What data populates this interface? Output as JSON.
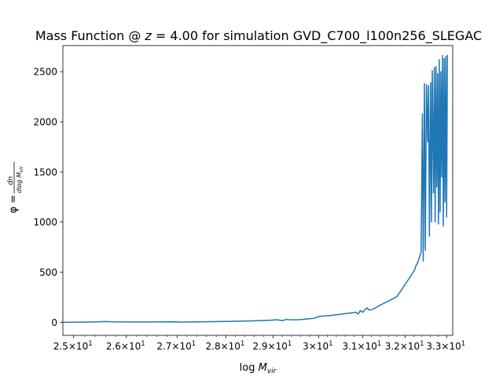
{
  "chart_data": {
    "type": "line",
    "title": "Mass Function @ z = 4.00 for simulation GVD_C700_l100n256_SLEGAC",
    "title_parts": {
      "prefix": "Mass Function @ ",
      "variable": "z",
      "equals_value": " = 4.00",
      "suffix": " for simulation GVD_C700_l100n256_SLEGAC"
    },
    "xlabel": "log M_vir",
    "xlabel_parts": {
      "base": "log ",
      "var": "M",
      "sub": "vir"
    },
    "ylabel": "φ = dn / dlog M_vir",
    "ylabel_parts": {
      "lhs": "φ = ",
      "num": "dn",
      "den": "dlog M",
      "den_sub": "vir"
    },
    "x_scale": "log",
    "xlim": [
      24.8,
      33.15
    ],
    "ylim": [
      -130,
      2760
    ],
    "grid": false,
    "legend": "none",
    "x_ticks": [
      {
        "value": 25,
        "mant": "2.5",
        "exp": "1"
      },
      {
        "value": 26,
        "mant": "2.6",
        "exp": "1"
      },
      {
        "value": 27,
        "mant": "2.7",
        "exp": "1"
      },
      {
        "value": 28,
        "mant": "2.8",
        "exp": "1"
      },
      {
        "value": 29,
        "mant": "2.9",
        "exp": "1"
      },
      {
        "value": 30,
        "mant": "3",
        "exp": "1"
      },
      {
        "value": 31,
        "mant": "3.1",
        "exp": "1"
      },
      {
        "value": 32,
        "mant": "3.2",
        "exp": "1"
      },
      {
        "value": 33,
        "mant": "3.3",
        "exp": "1"
      }
    ],
    "y_ticks": [
      {
        "value": 0,
        "label": "0"
      },
      {
        "value": 500,
        "label": "500"
      },
      {
        "value": 1000,
        "label": "1000"
      },
      {
        "value": 1500,
        "label": "1500"
      },
      {
        "value": 2000,
        "label": "2000"
      },
      {
        "value": 2500,
        "label": "2500"
      }
    ],
    "series": [
      {
        "color": "#1f77b4",
        "x": [
          24.8,
          25.3,
          25.6,
          25.75,
          26.2,
          26.9,
          27.1,
          27.6,
          28.0,
          28.5,
          28.9,
          29.1,
          29.2,
          29.3,
          29.35,
          29.5,
          29.7,
          29.9,
          30.0,
          30.3,
          30.7,
          30.85,
          30.9,
          30.95,
          31.0,
          31.1,
          31.15,
          31.25,
          31.4,
          31.8,
          32.08,
          32.22,
          32.26,
          32.28,
          32.32,
          32.38,
          32.41,
          32.43,
          32.46,
          32.48,
          32.51,
          32.54,
          32.56,
          32.58,
          32.61,
          32.63,
          32.65,
          32.68,
          32.7,
          32.72,
          32.74,
          32.76,
          32.78,
          32.8,
          32.82,
          32.84,
          32.86,
          32.88,
          32.9,
          32.92,
          32.94,
          32.96,
          32.98,
          33.0,
          33.02
        ],
        "y": [
          0,
          3,
          8,
          5,
          3,
          5,
          2,
          6,
          9,
          14,
          20,
          26,
          17,
          30,
          26,
          25,
          32,
          40,
          58,
          70,
          92,
          100,
          83,
          118,
          100,
          145,
          122,
          132,
          170,
          255,
          430,
          520,
          570,
          580,
          620,
          700,
          2080,
          610,
          2380,
          720,
          2370,
          1800,
          2360,
          860,
          2390,
          1000,
          2510,
          1290,
          2540,
          1000,
          2550,
          1350,
          2480,
          980,
          2620,
          1100,
          2500,
          1450,
          2660,
          960,
          2630,
          1200,
          2650,
          1050,
          2660
        ]
      }
    ]
  }
}
